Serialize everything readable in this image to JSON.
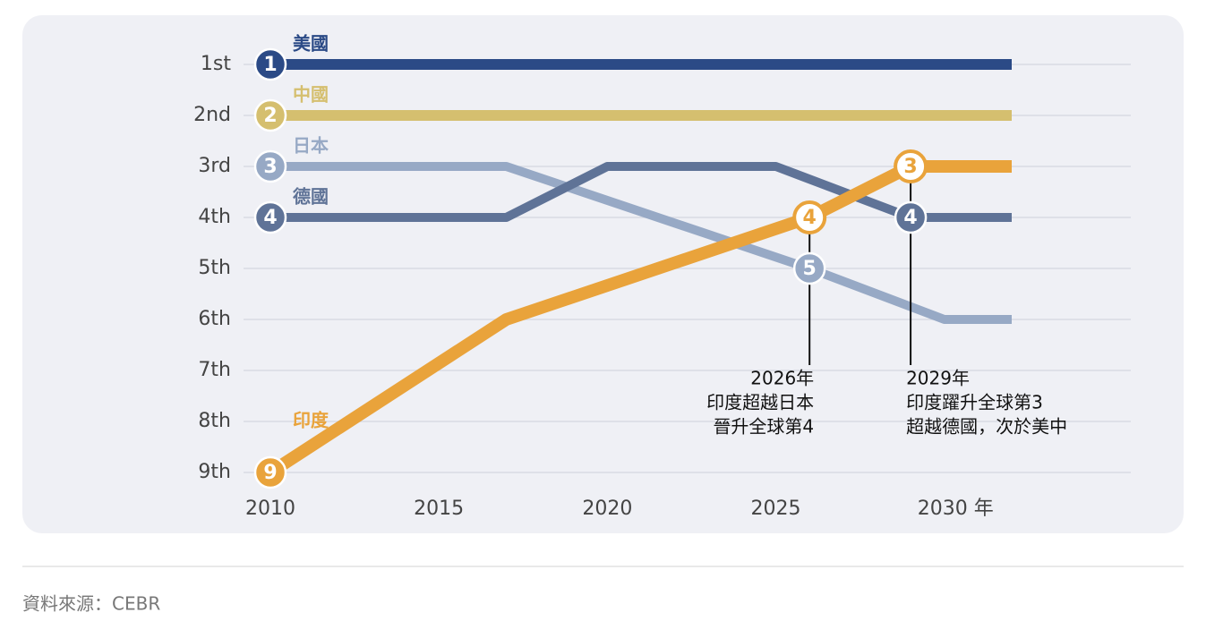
{
  "chart_data": {
    "type": "line",
    "xlim": [
      2010,
      2032
    ],
    "ylim": [
      1,
      9
    ],
    "xticks": [
      2010,
      2015,
      2020,
      2025,
      {
        "value": 2030,
        "label": "2030 年"
      }
    ],
    "yticks": [
      {
        "value": 1,
        "label": "1st"
      },
      {
        "value": 2,
        "label": "2nd"
      },
      {
        "value": 3,
        "label": "3rd"
      },
      {
        "value": 4,
        "label": "4th"
      },
      {
        "value": 5,
        "label": "5th"
      },
      {
        "value": 6,
        "label": "6th"
      },
      {
        "value": 7,
        "label": "7th"
      },
      {
        "value": 8,
        "label": "8th"
      },
      {
        "value": 9,
        "label": "9th"
      }
    ],
    "y_reversed": true,
    "grid": true,
    "series": [
      {
        "name": "美國",
        "color": "#2b4a86",
        "x": [
          2010,
          2032
        ],
        "values": [
          1,
          1
        ]
      },
      {
        "name": "中國",
        "color": "#d5bf6f",
        "x": [
          2010,
          2032
        ],
        "values": [
          2,
          2
        ]
      },
      {
        "name": "日本",
        "color": "#97a9c5",
        "x": [
          2010,
          2017,
          2026,
          2030,
          2032
        ],
        "values": [
          3,
          3,
          5,
          6,
          6
        ]
      },
      {
        "name": "德國",
        "color": "#5f7397",
        "x": [
          2010,
          2017,
          2020,
          2025,
          2029,
          2032
        ],
        "values": [
          4,
          4,
          3,
          3,
          4,
          4
        ]
      },
      {
        "name": "印度",
        "color": "#e9a33b",
        "x": [
          2010,
          2017,
          2026,
          2029,
          2032
        ],
        "values": [
          9,
          6,
          4,
          3,
          3
        ]
      }
    ],
    "annotations": [
      {
        "x": 2026,
        "lines": [
          "2026年",
          "印度超越日本",
          "晉升全球第4"
        ]
      },
      {
        "x": 2029,
        "lines": [
          "2029年",
          "印度躍升全球第3",
          "超越德國，次於美中"
        ]
      }
    ],
    "source": "資料來源：CEBR"
  }
}
